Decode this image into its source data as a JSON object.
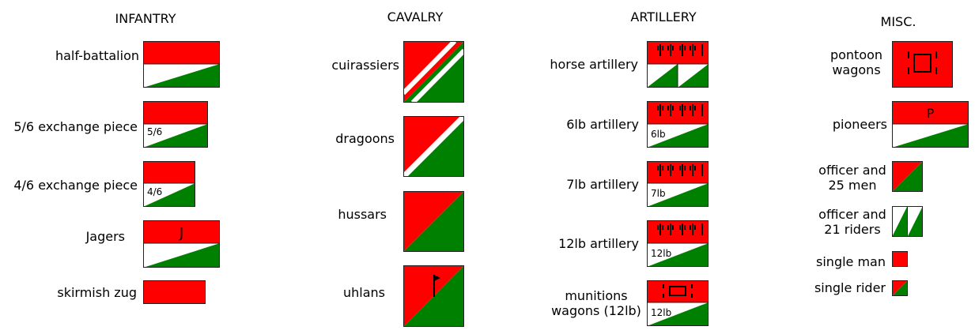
{
  "colors": {
    "red": "#ff0000",
    "green": "#008000",
    "white": "#ffffff",
    "stroke": "#222222"
  },
  "headers": {
    "infantry": "INFANTRY",
    "cavalry": "CAVALRY",
    "artillery": "ARTILLERY",
    "misc": "MISC."
  },
  "infantry": [
    {
      "label": "half-battalion",
      "abbr": ""
    },
    {
      "label": "5/6 exchange piece",
      "abbr": "5/6"
    },
    {
      "label": "4/6 exchange piece",
      "abbr": "4/6"
    },
    {
      "label": "Jagers",
      "abbr": "J"
    },
    {
      "label": "skirmish zug",
      "abbr": ""
    }
  ],
  "cavalry": [
    {
      "label": "cuirassiers"
    },
    {
      "label": "dragoons"
    },
    {
      "label": "hussars"
    },
    {
      "label": "uhlans"
    }
  ],
  "artillery": [
    {
      "label": "horse artillery",
      "abbr": ""
    },
    {
      "label": "6lb artillery",
      "abbr": "6lb"
    },
    {
      "label": "7lb artillery",
      "abbr": "7lb"
    },
    {
      "label": "12lb artillery",
      "abbr": "12lb"
    },
    {
      "label_lines": [
        "munitions",
        "wagons (12lb)"
      ],
      "abbr": "12lb"
    }
  ],
  "misc": [
    {
      "label_lines": [
        "pontoon",
        "wagons"
      ]
    },
    {
      "label": "pioneers",
      "abbr": "P"
    },
    {
      "label_lines": [
        "officer and",
        "25 men"
      ]
    },
    {
      "label_lines": [
        "officer and",
        "21 riders"
      ]
    },
    {
      "label": "single man"
    },
    {
      "label": "single rider"
    }
  ]
}
